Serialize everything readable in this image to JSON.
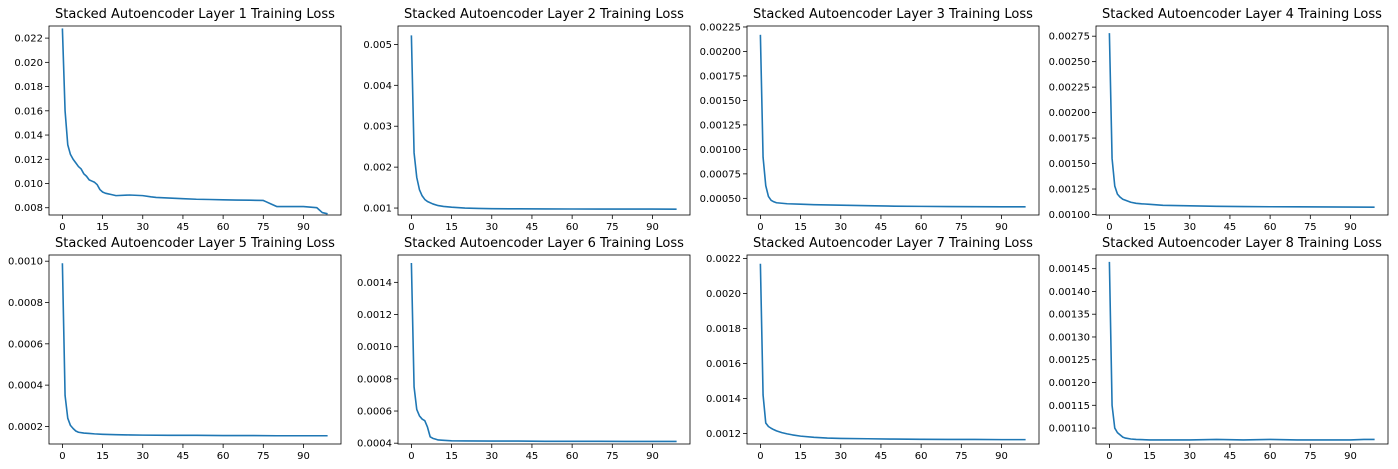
{
  "figure": {
    "background": "#ffffff",
    "line_color": "#1f77b4"
  },
  "chart_data": [
    {
      "type": "line",
      "title": "Stacked Autoencoder Layer 1 Training Loss",
      "xlabel": "",
      "ylabel": "",
      "xlim": [
        -5,
        104
      ],
      "ylim": [
        0.0074,
        0.023
      ],
      "xticks": [
        "0",
        "15",
        "30",
        "45",
        "60",
        "75",
        "90"
      ],
      "yticks": [
        "0.008",
        "0.010",
        "0.012",
        "0.014",
        "0.016",
        "0.018",
        "0.020",
        "0.022"
      ],
      "grid": false,
      "series": [
        {
          "x": [
            0,
            1,
            2,
            3,
            4,
            5,
            6,
            7,
            8,
            9,
            10,
            11,
            12,
            13,
            14,
            15,
            16,
            17,
            18,
            20,
            25,
            30,
            33,
            35,
            40,
            45,
            50,
            55,
            60,
            65,
            70,
            75,
            76,
            78,
            80,
            82,
            85,
            90,
            95,
            97,
            99
          ],
          "values": [
            0.0228,
            0.016,
            0.0132,
            0.0124,
            0.012,
            0.0117,
            0.0114,
            0.0112,
            0.0108,
            0.0106,
            0.0103,
            0.0102,
            0.0101,
            0.0099,
            0.0095,
            0.0093,
            0.0092,
            0.00915,
            0.0091,
            0.009,
            0.00905,
            0.009,
            0.0089,
            0.00885,
            0.0088,
            0.00875,
            0.0087,
            0.00868,
            0.00865,
            0.00863,
            0.00862,
            0.0086,
            0.0085,
            0.0083,
            0.0081,
            0.0081,
            0.0081,
            0.0081,
            0.008,
            0.0076,
            0.0075
          ]
        }
      ]
    },
    {
      "type": "line",
      "title": "Stacked Autoencoder Layer 2 Training Loss",
      "xlabel": "",
      "ylabel": "",
      "xlim": [
        -5,
        104
      ],
      "ylim": [
        0.00083,
        0.00545
      ],
      "xticks": [
        "0",
        "15",
        "30",
        "45",
        "60",
        "75",
        "90"
      ],
      "yticks": [
        "0.001",
        "0.002",
        "0.003",
        "0.004",
        "0.005"
      ],
      "grid": false,
      "series": [
        {
          "x": [
            0,
            1,
            2,
            3,
            4,
            5,
            6,
            8,
            10,
            12,
            15,
            20,
            25,
            30,
            40,
            50,
            60,
            70,
            80,
            90,
            99
          ],
          "values": [
            0.00522,
            0.00235,
            0.00175,
            0.00145,
            0.0013,
            0.00121,
            0.00116,
            0.0011,
            0.00106,
            0.00104,
            0.00102,
            0.001,
            0.00099,
            0.000985,
            0.00098,
            0.000978,
            0.000977,
            0.000976,
            0.000975,
            0.000974,
            0.000973
          ]
        }
      ]
    },
    {
      "type": "line",
      "title": "Stacked Autoencoder Layer 3 Training Loss",
      "xlabel": "",
      "ylabel": "",
      "xlim": [
        -5,
        104
      ],
      "ylim": [
        0.00033,
        0.00226
      ],
      "xticks": [
        "0",
        "15",
        "30",
        "45",
        "60",
        "75",
        "90"
      ],
      "yticks": [
        "0.00050",
        "0.00075",
        "0.00100",
        "0.00125",
        "0.00150",
        "0.00175",
        "0.00200",
        "0.00225"
      ],
      "grid": false,
      "series": [
        {
          "x": [
            0,
            1,
            2,
            3,
            4,
            5,
            6,
            8,
            10,
            15,
            20,
            30,
            40,
            50,
            60,
            70,
            80,
            90,
            99
          ],
          "values": [
            0.00217,
            0.00092,
            0.00063,
            0.00052,
            0.00048,
            0.000465,
            0.000455,
            0.00045,
            0.000445,
            0.00044,
            0.000435,
            0.00043,
            0.000425,
            0.00042,
            0.000418,
            0.000416,
            0.000415,
            0.000414,
            0.000414
          ]
        }
      ]
    },
    {
      "type": "line",
      "title": "Stacked Autoencoder Layer 4 Training Loss",
      "xlabel": "",
      "ylabel": "",
      "xlim": [
        -5,
        104
      ],
      "ylim": [
        0.000995,
        0.00285
      ],
      "xticks": [
        "0",
        "15",
        "30",
        "45",
        "60",
        "75",
        "90"
      ],
      "yticks": [
        "0.00100",
        "0.00125",
        "0.00150",
        "0.00175",
        "0.00200",
        "0.00225",
        "0.00250",
        "0.00275"
      ],
      "grid": false,
      "series": [
        {
          "x": [
            0,
            1,
            2,
            3,
            4,
            5,
            6,
            8,
            10,
            12,
            15,
            20,
            30,
            40,
            50,
            60,
            70,
            80,
            90,
            99
          ],
          "values": [
            0.00278,
            0.00155,
            0.00128,
            0.0012,
            0.00117,
            0.00115,
            0.00114,
            0.00112,
            0.00111,
            0.001105,
            0.0011,
            0.00109,
            0.001085,
            0.00108,
            0.001078,
            0.001076,
            0.001075,
            0.001074,
            0.001073,
            0.001072
          ]
        }
      ]
    },
    {
      "type": "line",
      "title": "Stacked Autoencoder Layer 5 Training Loss",
      "xlabel": "",
      "ylabel": "",
      "xlim": [
        -5,
        104
      ],
      "ylim": [
        0.000115,
        0.00103
      ],
      "xticks": [
        "0",
        "15",
        "30",
        "45",
        "60",
        "75",
        "90"
      ],
      "yticks": [
        "0.0002",
        "0.0004",
        "0.0006",
        "0.0008",
        "0.0010"
      ],
      "grid": false,
      "series": [
        {
          "x": [
            0,
            1,
            2,
            3,
            4,
            5,
            6,
            8,
            10,
            12,
            15,
            20,
            25,
            30,
            40,
            50,
            60,
            70,
            80,
            90,
            99
          ],
          "values": [
            0.00099,
            0.00035,
            0.00024,
            0.000205,
            0.00019,
            0.000178,
            0.000172,
            0.000168,
            0.000166,
            0.000164,
            0.000162,
            0.00016,
            0.000159,
            0.000158,
            0.000157,
            0.000157,
            0.000156,
            0.000156,
            0.000155,
            0.000155,
            0.000155
          ]
        }
      ]
    },
    {
      "type": "line",
      "title": "Stacked Autoencoder Layer 6 Training Loss",
      "xlabel": "",
      "ylabel": "",
      "xlim": [
        -5,
        104
      ],
      "ylim": [
        0.000395,
        0.00157
      ],
      "xticks": [
        "0",
        "15",
        "30",
        "45",
        "60",
        "75",
        "90"
      ],
      "yticks": [
        "0.0004",
        "0.0006",
        "0.0008",
        "0.0010",
        "0.0012",
        "0.0014"
      ],
      "grid": false,
      "series": [
        {
          "x": [
            0,
            1,
            2,
            3,
            4,
            5,
            6,
            7,
            8,
            9,
            10,
            12,
            15,
            20,
            30,
            40,
            50,
            60,
            70,
            80,
            90,
            99
          ],
          "values": [
            0.00152,
            0.00075,
            0.00061,
            0.00057,
            0.00055,
            0.00054,
            0.0005,
            0.00044,
            0.00043,
            0.000425,
            0.00042,
            0.000418,
            0.000415,
            0.000414,
            0.000413,
            0.000413,
            0.000412,
            0.000412,
            0.000412,
            0.000411,
            0.000411,
            0.000411
          ]
        }
      ]
    },
    {
      "type": "line",
      "title": "Stacked Autoencoder Layer 7 Training Loss",
      "xlabel": "",
      "ylabel": "",
      "xlim": [
        -5,
        104
      ],
      "ylim": [
        0.00114,
        0.00222
      ],
      "xticks": [
        "0",
        "15",
        "30",
        "45",
        "60",
        "75",
        "90"
      ],
      "yticks": [
        "0.0012",
        "0.0014",
        "0.0016",
        "0.0018",
        "0.0020",
        "0.0022"
      ],
      "grid": false,
      "series": [
        {
          "x": [
            0,
            1,
            2,
            3,
            4,
            5,
            6,
            8,
            10,
            12,
            15,
            20,
            25,
            30,
            40,
            50,
            60,
            70,
            80,
            90,
            99
          ],
          "values": [
            0.00217,
            0.00142,
            0.00126,
            0.00124,
            0.00123,
            0.001222,
            0.001215,
            0.001205,
            0.001198,
            0.001192,
            0.001185,
            0.001178,
            0.001174,
            0.001172,
            0.00117,
            0.001168,
            0.001167,
            0.001166,
            0.001166,
            0.001165,
            0.001165
          ]
        }
      ]
    },
    {
      "type": "line",
      "title": "Stacked Autoencoder Layer 8 Training Loss",
      "xlabel": "",
      "ylabel": "",
      "xlim": [
        -5,
        104
      ],
      "ylim": [
        0.001065,
        0.00148
      ],
      "xticks": [
        "0",
        "15",
        "30",
        "45",
        "60",
        "75",
        "90"
      ],
      "yticks": [
        "0.00110",
        "0.00115",
        "0.00120",
        "0.00125",
        "0.00130",
        "0.00135",
        "0.00140",
        "0.00145"
      ],
      "grid": false,
      "series": [
        {
          "x": [
            0,
            1,
            2,
            3,
            4,
            5,
            6,
            8,
            10,
            15,
            20,
            30,
            40,
            50,
            60,
            70,
            80,
            90,
            95,
            99
          ],
          "values": [
            0.001465,
            0.00115,
            0.0011,
            0.00109,
            0.001085,
            0.00108,
            0.001078,
            0.001076,
            0.001075,
            0.001074,
            0.001074,
            0.001074,
            0.001075,
            0.001074,
            0.001075,
            0.001074,
            0.001074,
            0.001074,
            0.001075,
            0.001075
          ]
        }
      ]
    }
  ]
}
